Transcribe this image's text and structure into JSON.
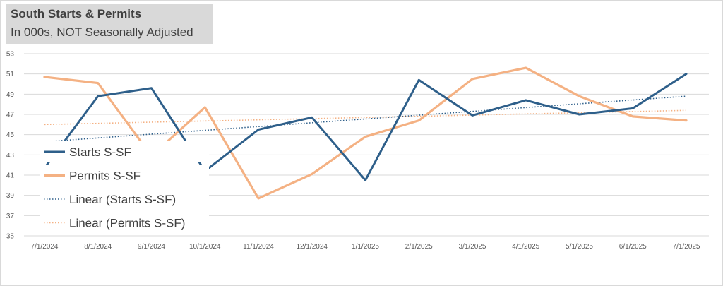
{
  "chart_data": {
    "type": "line",
    "title": "South Starts & Permits",
    "subtitle": "In 000s, NOT Seasonally Adjusted",
    "categories": [
      "7/1/2024",
      "8/1/2024",
      "9/1/2024",
      "10/1/2024",
      "11/1/2024",
      "12/1/2024",
      "1/1/2025",
      "2/1/2025",
      "3/1/2025",
      "4/1/2025",
      "5/1/2025",
      "6/1/2025",
      "7/1/2025"
    ],
    "series": [
      {
        "name": "Starts S-SF",
        "color": "#2e5f8a",
        "values": [
          41.7,
          48.8,
          49.6,
          41.4,
          45.5,
          46.7,
          40.5,
          50.4,
          46.9,
          48.4,
          47.0,
          47.6,
          51.0
        ]
      },
      {
        "name": "Permits S-SF",
        "color": "#f4b183",
        "values": [
          50.7,
          50.1,
          42.9,
          47.7,
          38.7,
          41.1,
          44.8,
          46.4,
          50.5,
          51.6,
          48.8,
          46.8,
          46.4
        ]
      }
    ],
    "trendlines": [
      {
        "name": "Linear (Starts S-SF)",
        "color": "#2e5f8a",
        "start": 44.3,
        "end": 48.8
      },
      {
        "name": "Linear (Permits S-SF)",
        "color": "#f4b183",
        "start": 46.0,
        "end": 47.4
      }
    ],
    "ylim": [
      35,
      53
    ],
    "yticks": [
      35,
      37,
      39,
      41,
      43,
      45,
      47,
      49,
      51,
      53
    ],
    "grid": true,
    "legend": "left, inside plot"
  }
}
